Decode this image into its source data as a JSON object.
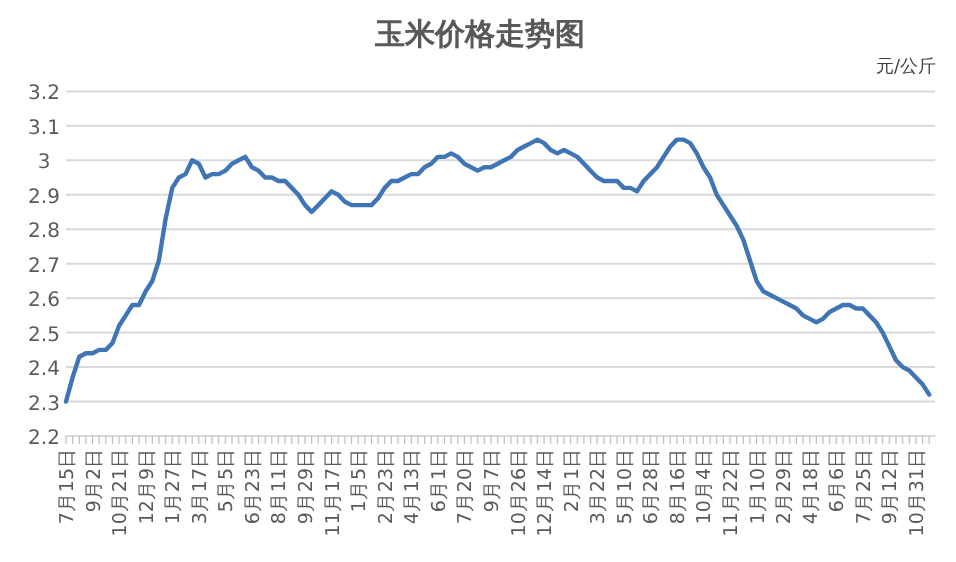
{
  "chart_data": {
    "type": "line",
    "title": "玉米价格走势图",
    "ylabel": "元/公斤",
    "categories": [
      "7月15日",
      null,
      null,
      null,
      "9月2日",
      null,
      null,
      null,
      "10月21日",
      null,
      null,
      null,
      "12月9日",
      null,
      null,
      null,
      "1月27日",
      null,
      null,
      null,
      "3月17日",
      null,
      null,
      null,
      "5月5日",
      null,
      null,
      null,
      "6月23日",
      null,
      null,
      null,
      "8月11日",
      null,
      null,
      null,
      "9月29日",
      null,
      null,
      null,
      "11月17日",
      null,
      null,
      null,
      "1月5日",
      null,
      null,
      null,
      "2月23日",
      null,
      null,
      null,
      "4月13日",
      null,
      null,
      null,
      "6月1日",
      null,
      null,
      null,
      "7月20日",
      null,
      null,
      null,
      "9月7日",
      null,
      null,
      null,
      "10月26日",
      null,
      null,
      null,
      "12月14日",
      null,
      null,
      null,
      "2月1日",
      null,
      null,
      null,
      "3月22日",
      null,
      null,
      null,
      "5月10日",
      null,
      null,
      null,
      "6月28日",
      null,
      null,
      null,
      "8月16日",
      null,
      null,
      null,
      "10月4日",
      null,
      null,
      null,
      "11月22日",
      null,
      null,
      null,
      "1月10日",
      null,
      null,
      null,
      "2月29日",
      null,
      null,
      null,
      "4月18日",
      null,
      null,
      null,
      "6月6日",
      null,
      null,
      null,
      "7月25日",
      null,
      null,
      null,
      "9月12日",
      null,
      null,
      null,
      "10月31日",
      null,
      null
    ],
    "series": [
      {
        "color": "#3f74b5",
        "values": [
          2.3,
          2.37,
          2.43,
          2.44,
          2.44,
          2.45,
          2.45,
          2.47,
          2.52,
          2.55,
          2.58,
          2.58,
          2.62,
          2.65,
          2.71,
          2.83,
          2.92,
          2.95,
          2.96,
          3.0,
          2.99,
          2.95,
          2.96,
          2.96,
          2.97,
          2.99,
          3.0,
          3.01,
          2.98,
          2.97,
          2.95,
          2.95,
          2.94,
          2.94,
          2.92,
          2.9,
          2.87,
          2.85,
          2.87,
          2.89,
          2.91,
          2.9,
          2.88,
          2.87,
          2.87,
          2.87,
          2.87,
          2.89,
          2.92,
          2.94,
          2.94,
          2.95,
          2.96,
          2.96,
          2.98,
          2.99,
          3.01,
          3.01,
          3.02,
          3.01,
          2.99,
          2.98,
          2.97,
          2.98,
          2.98,
          2.99,
          3.0,
          3.01,
          3.03,
          3.04,
          3.05,
          3.06,
          3.05,
          3.03,
          3.02,
          3.03,
          3.02,
          3.01,
          2.99,
          2.97,
          2.95,
          2.94,
          2.94,
          2.94,
          2.92,
          2.92,
          2.91,
          2.94,
          2.96,
          2.98,
          3.01,
          3.04,
          3.06,
          3.06,
          3.05,
          3.02,
          2.98,
          2.95,
          2.9,
          2.87,
          2.84,
          2.81,
          2.77,
          2.71,
          2.65,
          2.62,
          2.61,
          2.6,
          2.59,
          2.58,
          2.57,
          2.55,
          2.54,
          2.53,
          2.54,
          2.56,
          2.57,
          2.58,
          2.58,
          2.57,
          2.57,
          2.55,
          2.53,
          2.5,
          2.46,
          2.42,
          2.4,
          2.39,
          2.37,
          2.35,
          2.32
        ]
      }
    ],
    "ylim": [
      2.2,
      3.2
    ],
    "yticks": [
      2.2,
      2.3,
      2.4,
      2.5,
      2.6,
      2.7,
      2.8,
      2.9,
      3,
      3.1,
      3.2
    ],
    "grid": "y",
    "marker": "none",
    "line_style": "solid"
  }
}
